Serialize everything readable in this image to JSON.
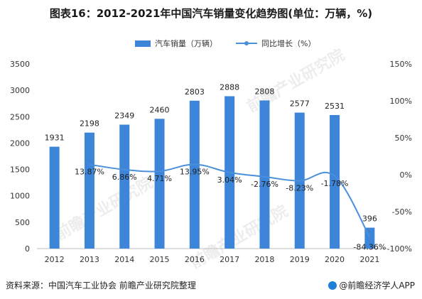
{
  "title": "图表16：2012-2021年中国汽车销量变化趋势图(单位：万辆，%)",
  "footer": {
    "source": "资料来源：中国汽车工业协会 前瞻产业研究院整理",
    "brand": "@前瞻经济学人APP"
  },
  "watermark": "前瞻产业研究院",
  "colors": {
    "bar": "#3d85d8",
    "line": "#4a8fdc",
    "grid": "#e3e3e3",
    "axis": "#bfbfbf"
  },
  "chart_data": {
    "type": "bar",
    "categories": [
      "2012",
      "2013",
      "2014",
      "2015",
      "2016",
      "2017",
      "2018",
      "2019",
      "2020",
      "2021"
    ],
    "series": [
      {
        "name": "汽车销量（万辆）",
        "kind": "bar",
        "axis": "left",
        "values": [
          1931,
          2198,
          2349,
          2460,
          2803,
          2888,
          2808,
          2577,
          2531,
          396
        ],
        "labels": [
          "1931",
          "2198",
          "2349",
          "2460",
          "2803",
          "2888",
          "2808",
          "2577",
          "2531",
          "396"
        ]
      },
      {
        "name": "同比增长（%）",
        "kind": "line",
        "axis": "right",
        "values": [
          null,
          13.87,
          6.86,
          4.71,
          13.95,
          3.04,
          -2.76,
          -8.23,
          -1.78,
          -84.36
        ],
        "labels": [
          "",
          "13.87%",
          "6.86%",
          "4.71%",
          "13.95%",
          "3.04%",
          "-2.76%",
          "-8.23%",
          "-1.78%",
          "-84.36%"
        ]
      }
    ],
    "y_left": {
      "min": 0,
      "max": 3500,
      "ticks": [
        "0",
        "500",
        "1000",
        "1500",
        "2000",
        "2500",
        "3000",
        "3500"
      ]
    },
    "y_right": {
      "min": -100,
      "max": 150,
      "ticks": [
        "-100%",
        "-50%",
        "0%",
        "50%",
        "100%",
        "150%"
      ]
    },
    "grid": false,
    "legend": "top-center"
  }
}
